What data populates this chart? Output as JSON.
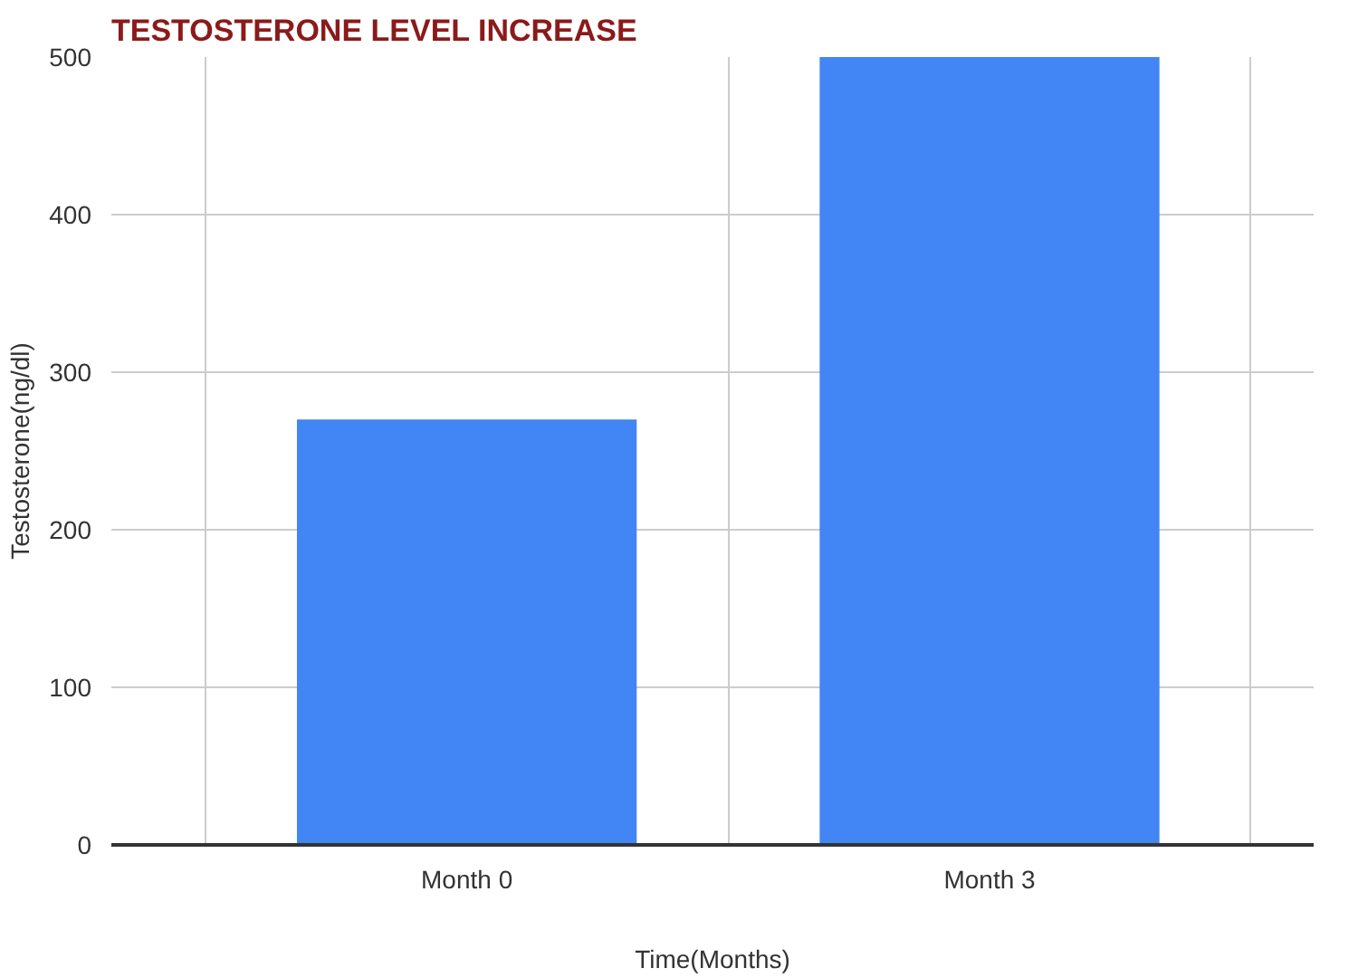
{
  "chart_data": {
    "type": "bar",
    "title": "TESTOSTERONE LEVEL INCREASE",
    "xlabel": "Time(Months)",
    "ylabel": "Testosterone(ng/dl)",
    "categories": [
      "Month 0",
      "Month 3"
    ],
    "values": [
      270,
      500
    ],
    "color": "#4285f4",
    "ylim": [
      0,
      500
    ],
    "yticks": [
      0,
      100,
      200,
      300,
      400,
      500
    ],
    "grid": true
  }
}
